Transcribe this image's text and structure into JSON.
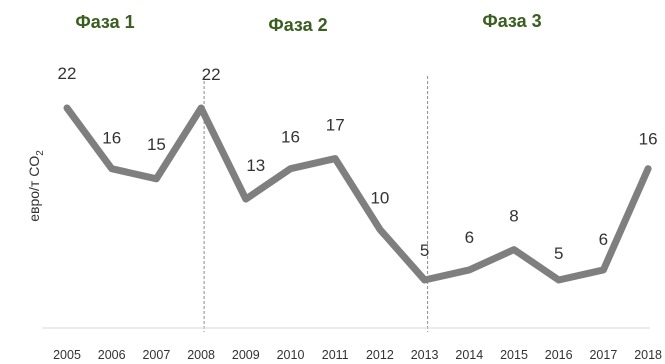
{
  "chart_data": {
    "type": "line",
    "categories": [
      "2005",
      "2006",
      "2007",
      "2008",
      "2009",
      "2010",
      "2011",
      "2012",
      "2013",
      "2014",
      "2015",
      "2016",
      "2017",
      "2018"
    ],
    "series": [
      {
        "values": [
          22,
          16,
          15,
          22,
          13,
          16,
          17,
          10,
          5,
          6,
          8,
          5,
          6,
          16
        ]
      }
    ],
    "data_labels": [
      "22",
      "16",
      "15",
      "22",
      "13",
      "16",
      "17",
      "10",
      "5",
      "6",
      "8",
      "5",
      "6",
      "16"
    ],
    "ylabel": "евро/т CO",
    "ylabel_subscript": "2",
    "phases": [
      {
        "label": "Фаза 1"
      },
      {
        "label": "Фаза 2"
      },
      {
        "label": "Фаза 3"
      }
    ],
    "phase_boundaries": [
      "2008",
      "2013"
    ],
    "line_color": "#7f7f7f",
    "phase_color": "#3a5e1f",
    "grid": false
  }
}
